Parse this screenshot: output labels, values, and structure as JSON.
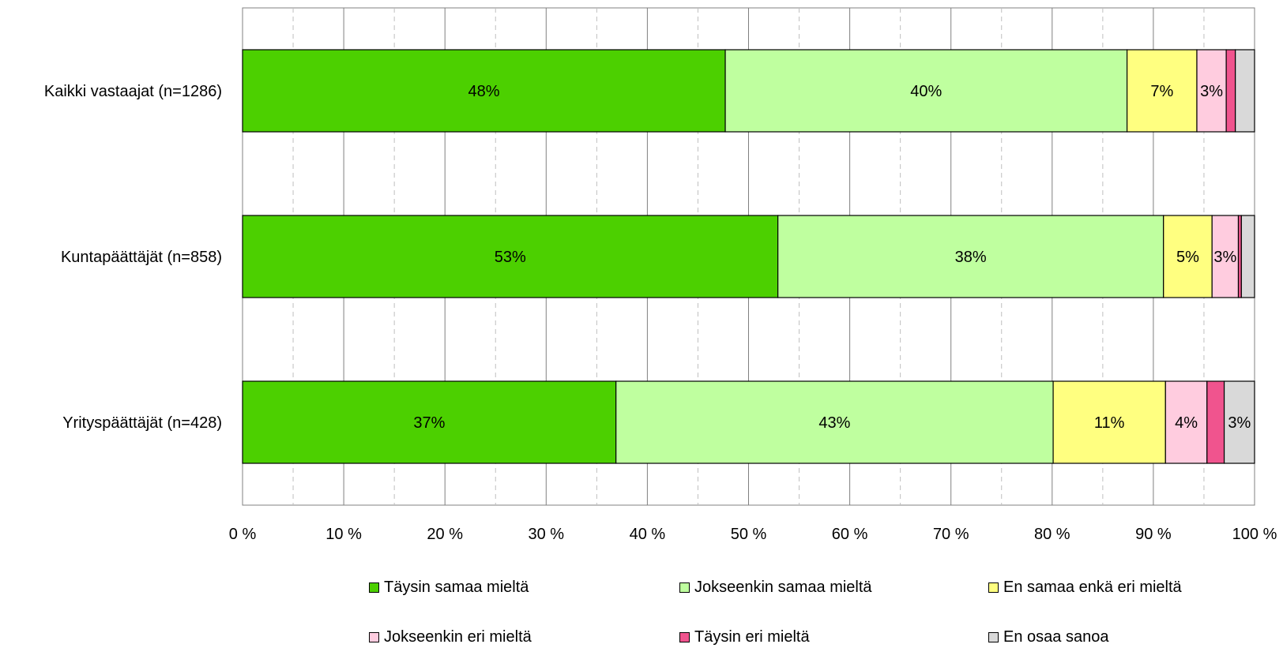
{
  "chart_data": {
    "type": "bar",
    "orientation": "horizontal",
    "stacked": true,
    "categories": [
      "Kaikki vastaajat (n=1286)",
      "Kuntapäättäjät (n=858)",
      "Yrityspäättäjät (n=428)"
    ],
    "series": [
      {
        "name": "Täysin samaa mieltä",
        "color": "#4cd000",
        "values": [
          47.7,
          52.9,
          36.9
        ],
        "labels": [
          "48%",
          "53%",
          "37%"
        ]
      },
      {
        "name": "Jokseenkin samaa mieltä",
        "color": "#bfff9f",
        "values": [
          39.7,
          38.1,
          43.2
        ],
        "labels": [
          "40%",
          "38%",
          "43%"
        ]
      },
      {
        "name": "En samaa enkä eri mieltä",
        "color": "#ffff80",
        "values": [
          6.9,
          4.8,
          11.1
        ],
        "labels": [
          "7%",
          "5%",
          "11%"
        ]
      },
      {
        "name": "Jokseenkin eri mieltä",
        "color": "#ffccdf",
        "values": [
          2.9,
          2.6,
          4.1
        ],
        "labels": [
          "3%",
          "3%",
          "4%"
        ]
      },
      {
        "name": "Täysin eri mieltä",
        "color": "#f0548e",
        "values": [
          0.9,
          0.3,
          1.7
        ],
        "labels": [
          "",
          "",
          ""
        ]
      },
      {
        "name": "En osaa sanoa",
        "color": "#d9d9d9",
        "values": [
          1.9,
          1.3,
          3.0
        ],
        "labels": [
          "",
          "",
          "3%"
        ]
      }
    ],
    "x_ticks": [
      "0 %",
      "10 %",
      "20 %",
      "30 %",
      "40 %",
      "50 %",
      "60 %",
      "70 %",
      "80 %",
      "90 %",
      "100 %"
    ],
    "xlim": [
      0,
      100
    ],
    "grid": "vertical major solid, minor dashed",
    "legend_position": "bottom"
  }
}
